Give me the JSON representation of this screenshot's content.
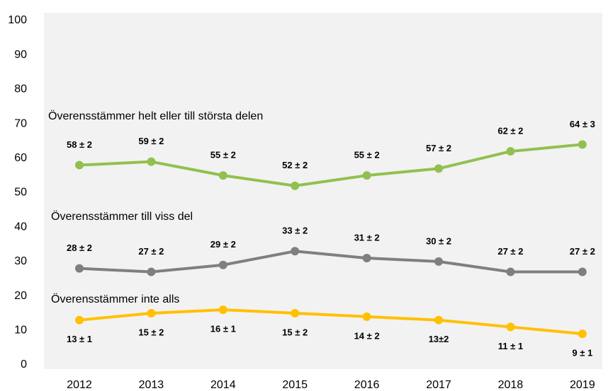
{
  "chart_data": {
    "type": "line",
    "categories": [
      "2012",
      "2013",
      "2014",
      "2015",
      "2016",
      "2017",
      "2018",
      "2019"
    ],
    "series": [
      {
        "name": "Överensstämmer helt eller till största delen",
        "color": "#92c050",
        "values": [
          58,
          59,
          55,
          52,
          55,
          57,
          62,
          64
        ],
        "value_labels": [
          "58 ± 2",
          "59 ± 2",
          "55 ± 2",
          "52 ± 2",
          "55 ± 2",
          "57 ± 2",
          "62 ± 2",
          "64 ± 3"
        ]
      },
      {
        "name": "Överensstämmer till viss del",
        "color": "#7f7f7f",
        "values": [
          28,
          27,
          29,
          33,
          31,
          30,
          27,
          27
        ],
        "value_labels": [
          "28 ± 2",
          "27 ± 2",
          "29 ± 2",
          "33 ± 2",
          "31 ± 2",
          "30 ± 2",
          "27 ± 2",
          "27 ± 2"
        ]
      },
      {
        "name": "Överensstämmer inte alls",
        "color": "#ffc000",
        "values": [
          13,
          15,
          16,
          15,
          14,
          13,
          11,
          9
        ],
        "value_labels": [
          "13 ± 1",
          "15 ± 2",
          "16 ± 1",
          "15 ± 2",
          "14 ± 2",
          "13±2",
          "11 ± 1",
          "9 ± 1"
        ]
      }
    ],
    "ylim": [
      0,
      100
    ],
    "yticks": [
      0,
      10,
      20,
      30,
      40,
      50,
      60,
      70,
      80,
      90,
      100
    ],
    "grid": false
  }
}
